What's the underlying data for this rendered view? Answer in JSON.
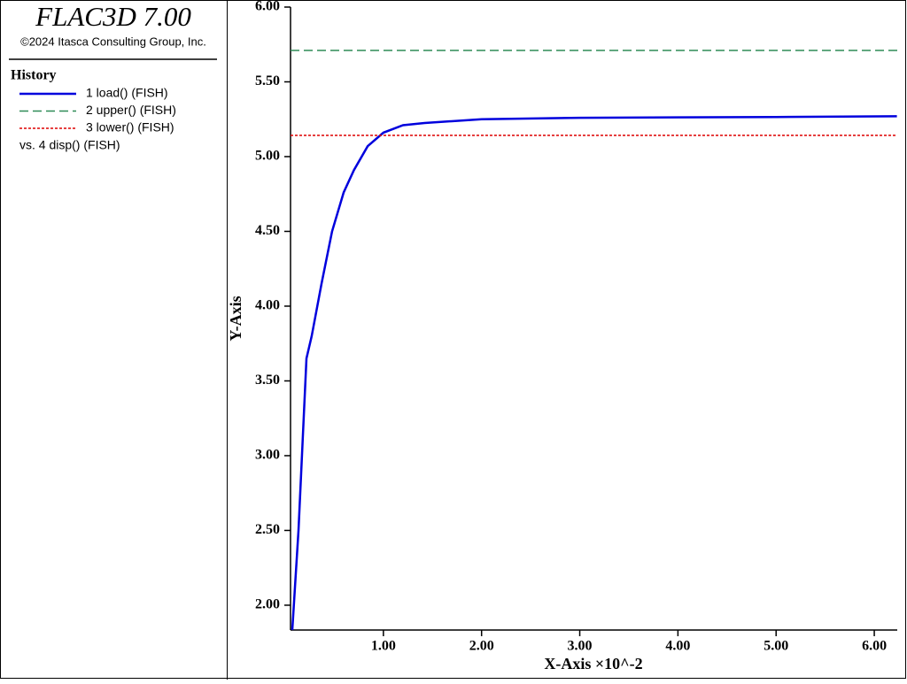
{
  "chart_data": {
    "type": "line",
    "program": "FLAC3D 7.00",
    "copyright": "©2024 Itasca Consulting Group, Inc.",
    "legend_title": "History",
    "legend_note": "vs. 4 disp() (FISH)",
    "xlabel": "X-Axis ×10^-2",
    "ylabel": "Y-Axis",
    "xlim": [
      0.054,
      6.234
    ],
    "ylim": [
      1.834,
      6.0
    ],
    "xticks": [
      {
        "value": 1,
        "label": "1.00"
      },
      {
        "value": 2,
        "label": "2.00"
      },
      {
        "value": 3,
        "label": "3.00"
      },
      {
        "value": 4,
        "label": "4.00"
      },
      {
        "value": 5,
        "label": "5.00"
      },
      {
        "value": 6,
        "label": "6.00"
      }
    ],
    "yticks": [
      {
        "value": 2,
        "label": "2.00"
      },
      {
        "value": 2.5,
        "label": "2.50"
      },
      {
        "value": 3,
        "label": "3.00"
      },
      {
        "value": 3.5,
        "label": "3.50"
      },
      {
        "value": 4,
        "label": "4.00"
      },
      {
        "value": 4.5,
        "label": "4.50"
      },
      {
        "value": 5,
        "label": "5.00"
      },
      {
        "value": 5.5,
        "label": "5.50"
      },
      {
        "value": 6,
        "label": "6.00"
      }
    ],
    "series": [
      {
        "name": "1 load() (FISH)",
        "color": "#0000dd",
        "linestyle": "solid",
        "x": [
          0.072,
          0.135,
          0.216,
          0.27,
          0.37,
          0.477,
          0.595,
          0.7,
          0.84,
          1.0,
          1.2,
          1.42,
          2.0,
          3.0,
          5.0,
          6.23
        ],
        "values": [
          1.834,
          2.5,
          3.65,
          3.8,
          4.15,
          4.5,
          4.76,
          4.91,
          5.07,
          5.16,
          5.21,
          5.225,
          5.25,
          5.26,
          5.265,
          5.27
        ]
      },
      {
        "name": "2 upper() (FISH)",
        "color": "#2e8b57",
        "linestyle": "dashed",
        "x": [
          0.054,
          6.234
        ],
        "values": [
          5.71,
          5.71
        ]
      },
      {
        "name": "3 lower() (FISH)",
        "color": "#dd0000",
        "linestyle": "dotted",
        "x": [
          0.054,
          6.234
        ],
        "values": [
          5.142,
          5.142
        ]
      }
    ]
  }
}
